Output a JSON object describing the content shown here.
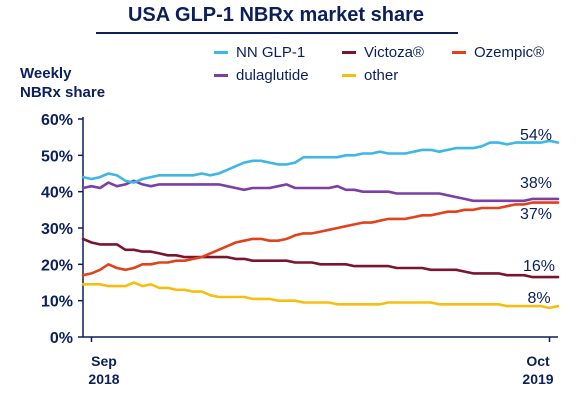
{
  "chart_data": {
    "type": "line",
    "title": "USA GLP-1 NBRx market share",
    "ylabel_line1": "Weekly",
    "ylabel_line2": "NBRx share",
    "y_unit": "%",
    "ylim": [
      0,
      60
    ],
    "y_ticks": [
      "0%",
      "10%",
      "20%",
      "30%",
      "40%",
      "50%",
      "60%"
    ],
    "x_ticks": [
      {
        "top": "Sep",
        "bottom": "2018"
      },
      {
        "top": "Oct",
        "bottom": "2019"
      }
    ],
    "xlim": [
      0,
      56
    ],
    "grid": false,
    "legend_position": "top",
    "series": [
      {
        "name": "NN GLP-1",
        "color": "#3db7e4",
        "end_label": "54%",
        "values": [
          44,
          43.5,
          44,
          45,
          44.5,
          43,
          42.5,
          43.5,
          44,
          44.5,
          44.5,
          44.5,
          44.5,
          44.5,
          45,
          44.5,
          45,
          46,
          47,
          48,
          48.5,
          48.5,
          48,
          47.5,
          47.5,
          48,
          49.5,
          49.5,
          49.5,
          49.5,
          49.5,
          50,
          50,
          50.5,
          50.5,
          51,
          50.5,
          50.5,
          50.5,
          51,
          51.5,
          51.5,
          51,
          51.5,
          52,
          52,
          52,
          52.5,
          53.5,
          53.5,
          53,
          53.5,
          53.5,
          53.5,
          53.5,
          54,
          53.5
        ]
      },
      {
        "name": "Victoza®",
        "color": "#7a1530",
        "end_label": "16%",
        "values": [
          27,
          26,
          25.5,
          25.5,
          25.5,
          24,
          24,
          23.5,
          23.5,
          23,
          22.5,
          22.5,
          22,
          22,
          22,
          22,
          22,
          22,
          21.5,
          21.5,
          21,
          21,
          21,
          21,
          21,
          20.5,
          20.5,
          20.5,
          20,
          20,
          20,
          20,
          19.5,
          19.5,
          19.5,
          19.5,
          19.5,
          19,
          19,
          19,
          19,
          18.5,
          18.5,
          18.5,
          18.5,
          18,
          17.5,
          17.5,
          17.5,
          17.5,
          17,
          17,
          17,
          16.5,
          16.5,
          16.5,
          16.5
        ]
      },
      {
        "name": "Ozempic®",
        "color": "#e0421c",
        "end_label": "37%",
        "values": [
          17,
          17.5,
          18.5,
          20,
          19,
          18.5,
          19,
          20,
          20,
          20.5,
          20.5,
          21,
          21,
          21.5,
          22,
          23,
          24,
          25,
          26,
          26.5,
          27,
          27,
          26.5,
          26.5,
          27,
          28,
          28.5,
          28.5,
          29,
          29.5,
          30,
          30.5,
          31,
          31.5,
          31.5,
          32,
          32.5,
          32.5,
          32.5,
          33,
          33.5,
          33.5,
          34,
          34.5,
          34.5,
          35,
          35,
          35.5,
          35.5,
          35.5,
          36,
          36.5,
          36.5,
          37,
          37,
          37,
          37
        ]
      },
      {
        "name": "dulaglutide",
        "color": "#7b3fa5",
        "end_label": "38%",
        "values": [
          41,
          41.5,
          41,
          42.5,
          41.5,
          42,
          43,
          42,
          41.5,
          42,
          42,
          42,
          42,
          42,
          42,
          42,
          42,
          41.5,
          41,
          40.5,
          41,
          41,
          41,
          41.5,
          42,
          41,
          41,
          41,
          41,
          41,
          41.5,
          40.5,
          40.5,
          40,
          40,
          40,
          40,
          39.5,
          39.5,
          39.5,
          39.5,
          39.5,
          39.5,
          39,
          38.5,
          38,
          37.5,
          37.5,
          37.5,
          37.5,
          37.5,
          37.5,
          37.5,
          38,
          38,
          38,
          38
        ]
      },
      {
        "name": "other",
        "color": "#f7be12",
        "end_label": "8%",
        "values": [
          14.5,
          14.5,
          14.5,
          14,
          14,
          14,
          15,
          14,
          14.5,
          13.5,
          13.5,
          13,
          13,
          12.5,
          12.5,
          11.5,
          11,
          11,
          11,
          11,
          10.5,
          10.5,
          10.5,
          10,
          10,
          10,
          9.5,
          9.5,
          9.5,
          9.5,
          9,
          9,
          9,
          9,
          9,
          9,
          9.5,
          9.5,
          9.5,
          9.5,
          9.5,
          9.5,
          9,
          9,
          9,
          9,
          9,
          9,
          9,
          9,
          8.5,
          8.5,
          8.5,
          8.5,
          8.5,
          8,
          8.5
        ]
      }
    ]
  }
}
